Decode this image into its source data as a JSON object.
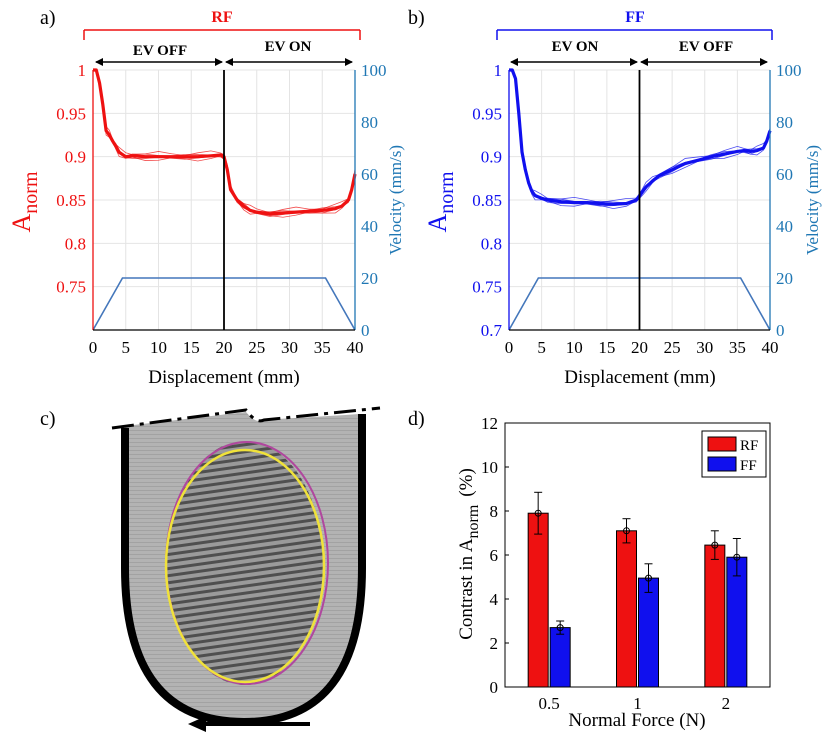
{
  "colors": {
    "rf": "#ee1111",
    "ff": "#1010ee",
    "velocity": "#4477bb",
    "velocity_axis": "#1f77b4",
    "grid": "#e4e4e4",
    "ring_magenta": "#b0479e",
    "ring_yellow": "#f0e23a",
    "finger_gray": "#a8a8a8"
  },
  "panels": {
    "a": {
      "letter": "a)"
    },
    "b": {
      "letter": "b)"
    },
    "c": {
      "letter": "c)"
    },
    "d": {
      "letter": "d)"
    }
  },
  "chart_data": [
    {
      "id": "a",
      "type": "line",
      "title": "RF",
      "phases": [
        "EV OFF",
        "EV ON"
      ],
      "boundary_x": 20,
      "xlabel": "Displacement (mm)",
      "ylabel_main": "A",
      "ylabel_sub": "norm",
      "ylabel_right": "Velocity (mm/s)",
      "xlim": [
        0,
        40
      ],
      "ylim": [
        0.7,
        1.0
      ],
      "ylim_right": [
        0,
        100
      ],
      "xticks": [
        "0",
        "5",
        "10",
        "15",
        "20",
        "25",
        "30",
        "35",
        "40"
      ],
      "yticks": [
        "0.75",
        "0.8",
        "0.85",
        "0.9",
        "0.95",
        "1"
      ],
      "yticks_right": [
        "0",
        "20",
        "40",
        "60",
        "80",
        "100"
      ],
      "series": [
        {
          "name": "Anorm (RF)",
          "x": [
            0,
            0.5,
            1,
            1.5,
            2,
            2.5,
            3,
            3.5,
            4,
            5,
            6,
            8,
            10,
            12,
            14,
            16,
            18,
            19.5,
            20,
            20.5,
            21,
            22,
            23,
            24,
            25,
            27,
            29,
            31,
            33,
            35,
            37,
            38,
            39,
            39.5,
            40
          ],
          "y": [
            1.0,
            1.0,
            0.985,
            0.96,
            0.93,
            0.925,
            0.918,
            0.912,
            0.905,
            0.9,
            0.901,
            0.9,
            0.9,
            0.9,
            0.9,
            0.9,
            0.901,
            0.902,
            0.9,
            0.885,
            0.862,
            0.85,
            0.843,
            0.838,
            0.836,
            0.834,
            0.835,
            0.836,
            0.837,
            0.838,
            0.84,
            0.843,
            0.85,
            0.862,
            0.88
          ]
        },
        {
          "name": "Velocity",
          "x": [
            0,
            4.5,
            35.5,
            40
          ],
          "y": [
            0,
            20,
            20,
            0
          ]
        }
      ]
    },
    {
      "id": "b",
      "type": "line",
      "title": "FF",
      "phases": [
        "EV ON",
        "EV OFF"
      ],
      "boundary_x": 20,
      "xlabel": "Displacement (mm)",
      "ylabel_main": "A",
      "ylabel_sub": "norm",
      "ylabel_right": "Velocity (mm/s)",
      "xlim": [
        0,
        40
      ],
      "ylim": [
        0.7,
        1.0
      ],
      "ylim_right": [
        0,
        100
      ],
      "xticks": [
        "0",
        "5",
        "10",
        "15",
        "20",
        "25",
        "30",
        "35",
        "40"
      ],
      "yticks": [
        "0.7",
        "0.75",
        "0.8",
        "0.85",
        "0.9",
        "0.95",
        "1"
      ],
      "yticks_right": [
        "0",
        "20",
        "40",
        "60",
        "80",
        "100"
      ],
      "series": [
        {
          "name": "Anorm (FF)",
          "x": [
            0,
            0.5,
            1,
            1.5,
            2,
            2.5,
            3,
            3.5,
            4,
            5,
            6,
            8,
            10,
            12,
            14,
            16,
            18,
            19.5,
            20,
            21,
            22,
            23,
            25,
            27,
            29,
            31,
            33,
            35,
            36,
            37,
            38,
            39,
            39.5,
            40
          ],
          "y": [
            1.0,
            1.0,
            0.99,
            0.95,
            0.905,
            0.885,
            0.87,
            0.86,
            0.855,
            0.852,
            0.85,
            0.848,
            0.847,
            0.847,
            0.846,
            0.845,
            0.846,
            0.85,
            0.855,
            0.865,
            0.872,
            0.878,
            0.885,
            0.892,
            0.896,
            0.9,
            0.903,
            0.906,
            0.907,
            0.906,
            0.907,
            0.91,
            0.918,
            0.93
          ]
        },
        {
          "name": "Velocity",
          "x": [
            0,
            4.5,
            35.5,
            40
          ],
          "y": [
            0,
            20,
            20,
            0
          ]
        }
      ]
    },
    {
      "id": "d",
      "type": "bar",
      "categories": [
        "0.5",
        "1",
        "2"
      ],
      "series": [
        {
          "name": "RF",
          "values": [
            7.9,
            7.1,
            6.45
          ],
          "errors": [
            0.95,
            0.55,
            0.65
          ]
        },
        {
          "name": "FF",
          "values": [
            2.7,
            4.95,
            5.9
          ],
          "errors": [
            0.3,
            0.65,
            0.85
          ]
        }
      ],
      "xlabel": "Normal Force (N)",
      "ylabel_main": "Contrast in A",
      "ylabel_sub": "norm",
      "ylabel_unit": "(%)",
      "ylim": [
        0,
        12
      ],
      "yticks": [
        "0",
        "2",
        "4",
        "6",
        "8",
        "10",
        "12"
      ],
      "legend": [
        "RF",
        "FF"
      ],
      "legend_position": "top-right"
    }
  ]
}
